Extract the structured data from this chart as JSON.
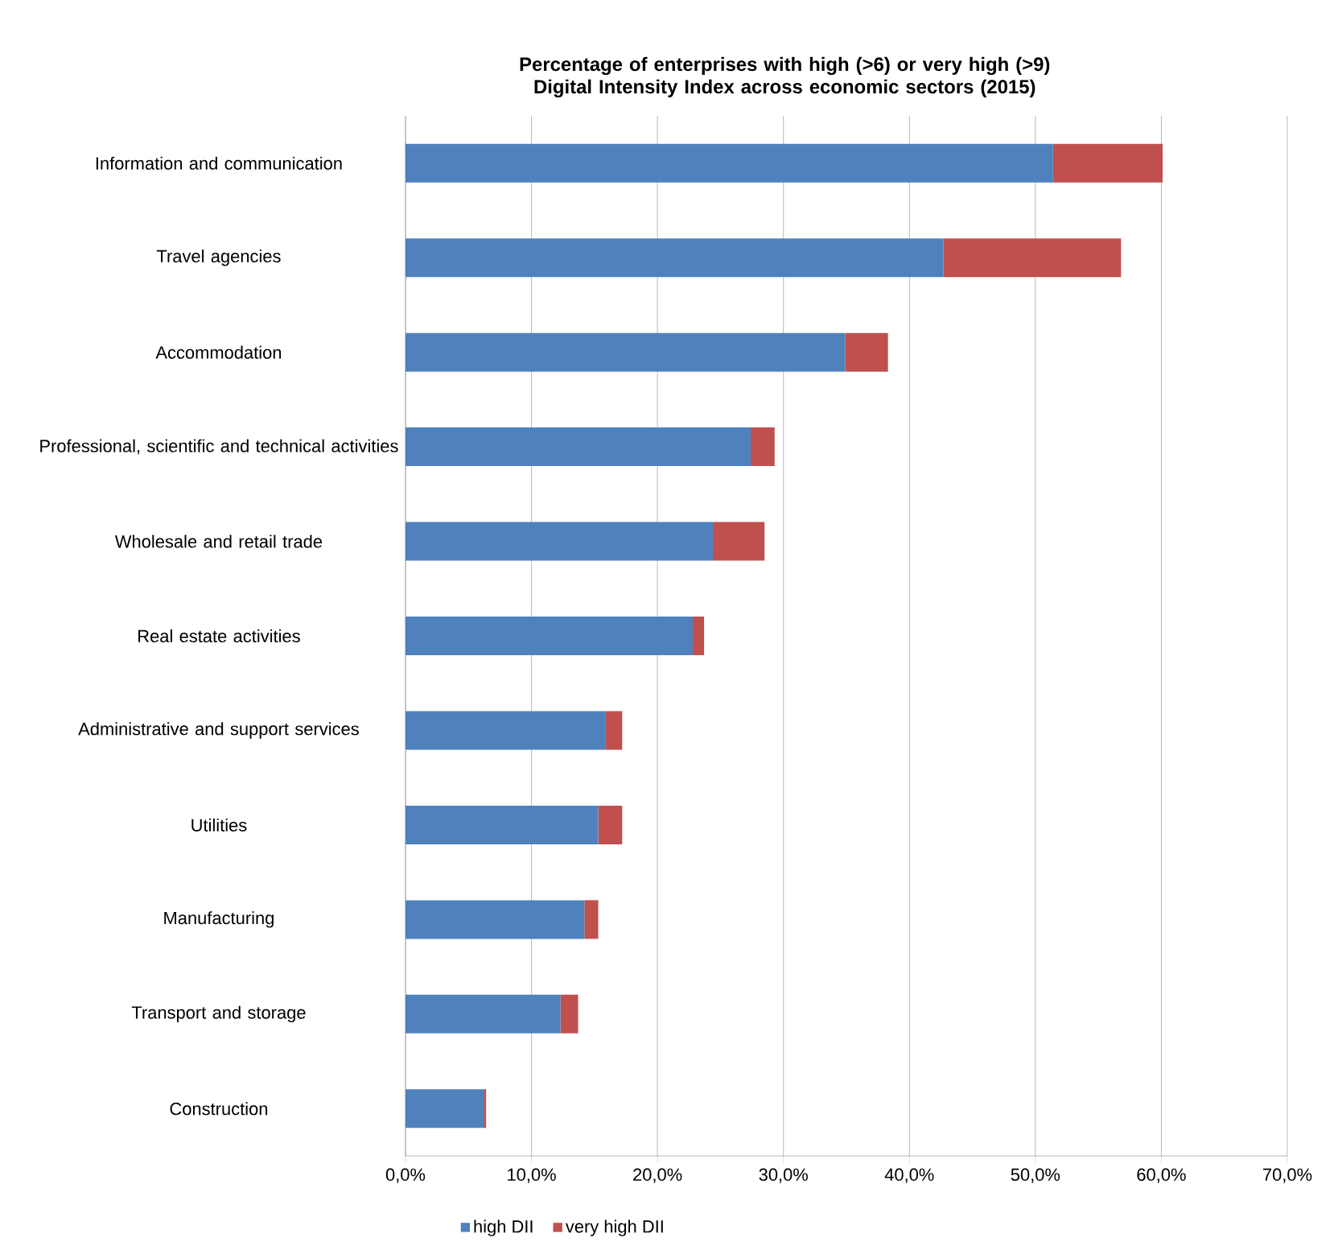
{
  "chart_data": {
    "type": "bar",
    "orientation": "horizontal",
    "stacked": true,
    "title": "Percentage of enterprises with high (>6) or very high (>9) Digital Intensity Index across economic sectors (2015)",
    "categories": [
      "Information and communication",
      "Travel agencies",
      "Accommodation",
      "Professional, scientific and technical activities",
      "Wholesale and retail trade",
      "Real estate activities",
      "Administrative and support services",
      "Utilities",
      "Manufacturing",
      "Transport and storage",
      "Construction"
    ],
    "series": [
      {
        "name": "high DII",
        "color": "#4f81bd",
        "values": [
          51.4,
          42.7,
          34.9,
          27.4,
          24.4,
          22.8,
          15.9,
          15.3,
          14.2,
          12.3,
          6.2
        ]
      },
      {
        "name": "very high DII",
        "color": "#c0504d",
        "values": [
          8.7,
          14.1,
          3.4,
          1.9,
          4.1,
          0.9,
          1.3,
          1.9,
          1.1,
          1.4,
          0.2
        ]
      }
    ],
    "xlim": [
      0,
      70
    ],
    "xticks": [
      {
        "value": 0,
        "label": "0,0%"
      },
      {
        "value": 10,
        "label": "10,0%"
      },
      {
        "value": 20,
        "label": "20,0%"
      },
      {
        "value": 30,
        "label": "30,0%"
      },
      {
        "value": 40,
        "label": "40,0%"
      },
      {
        "value": 50,
        "label": "50,0%"
      },
      {
        "value": 60,
        "label": "60,0%"
      },
      {
        "value": 70,
        "label": "70,0%"
      }
    ],
    "grid": "x",
    "legend": "bottom"
  }
}
